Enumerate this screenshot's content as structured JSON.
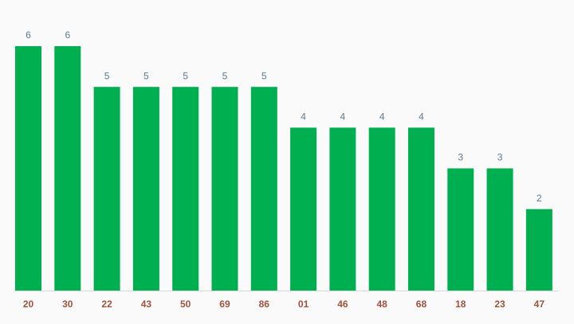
{
  "chart_data": {
    "type": "bar",
    "categories": [
      "20",
      "30",
      "22",
      "43",
      "50",
      "69",
      "86",
      "01",
      "46",
      "48",
      "68",
      "18",
      "23",
      "47"
    ],
    "values": [
      6,
      6,
      5,
      5,
      5,
      5,
      5,
      4,
      4,
      4,
      4,
      3,
      3,
      2
    ],
    "color": "#00b050"
  }
}
